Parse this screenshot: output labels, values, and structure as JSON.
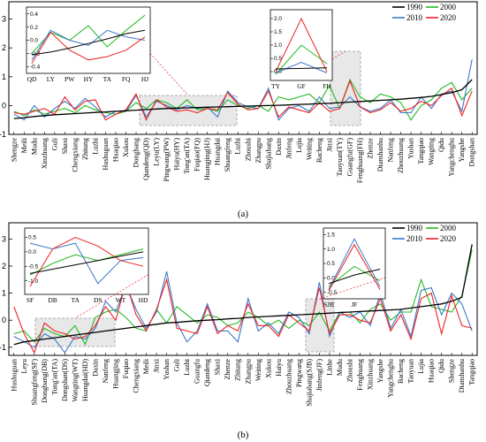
{
  "colors": {
    "1990": "#000000",
    "2000": "#22bb22",
    "2010": "#3a78c9",
    "2020": "#ee2222"
  },
  "chart_data": [
    {
      "type": "line",
      "caption": "(a)",
      "legend": [
        "1990",
        "2000",
        "2010",
        "2020"
      ],
      "legend_position": "top-right",
      "ylim": [
        -1,
        3.6
      ],
      "yticks": [
        -1,
        0,
        1,
        2,
        3
      ],
      "categories": [
        "Shengze",
        "Meili",
        "Mudu",
        "Xinzhuang",
        "Guli",
        "Shaxi",
        "Chengxiang",
        "Zhitang",
        "Luzhi",
        "Hushuguan",
        "Huaqiao",
        "Xukou",
        "Dongbang",
        "Qiandeng(QD)",
        "Leyu(LY)",
        "Pingwang(PW)",
        "Haiyu(HY)",
        "Tong'an(TA)",
        "Fuqiao(FQ)",
        "Huangjing(HJ)",
        "Huangdai",
        "Shuangfeng",
        "Luzhi",
        "Zhoushi",
        "Zhangpu",
        "Shajiabang",
        "Daxin",
        "Jinfeng",
        "Lujia",
        "Weiting",
        "Bacheng",
        "Jinxi",
        "Taoyuan(TY)",
        "Guangfu(GF)",
        "Fenghuang(FH)",
        "Zhenze",
        "Dianshanhu",
        "Nanfeng",
        "Zhouzhuang",
        "Yushan",
        "Tangqiao",
        "Wangting",
        "Qidu",
        "Yangchenghu",
        "Yangshe",
        "Dongshan"
      ],
      "series": [
        {
          "name": "1990",
          "values": [
            -0.45,
            -0.42,
            -0.38,
            -0.35,
            -0.32,
            -0.3,
            -0.28,
            -0.26,
            -0.24,
            -0.22,
            -0.2,
            -0.18,
            -0.16,
            -0.14,
            -0.12,
            -0.1,
            -0.09,
            -0.08,
            -0.07,
            -0.06,
            -0.05,
            -0.04,
            -0.03,
            -0.02,
            -0.01,
            0,
            0.01,
            0.02,
            0.04,
            0.05,
            0.07,
            0.08,
            0.1,
            0.12,
            0.14,
            0.16,
            0.18,
            0.2,
            0.22,
            0.25,
            0.28,
            0.32,
            0.38,
            0.45,
            0.55,
            0.9
          ]
        },
        {
          "name": "2000",
          "values": [
            -0.2,
            -0.35,
            -0.15,
            -0.3,
            -0.2,
            -0.1,
            -0.25,
            0,
            -0.15,
            -0.25,
            -0.3,
            -0.2,
            0.1,
            -0.1,
            0.2,
            0.1,
            -0.1,
            0.2,
            -0.15,
            -0.1,
            -0.2,
            0.2,
            0,
            -0.1,
            0,
            -0.2,
            0.3,
            0.2,
            0.3,
            0.4,
            0.1,
            0.7,
            -0.1,
            0.9,
            0.3,
            0.1,
            0.4,
            0.3,
            0.1,
            -0.5,
            0,
            0.2,
            0.6,
            0.8,
            0.2,
            0.6
          ]
        },
        {
          "name": "2010",
          "values": [
            -0.3,
            -0.5,
            0,
            -0.4,
            -0.1,
            0.15,
            -0.1,
            0.25,
            -0.05,
            -0.4,
            -0.2,
            -0.2,
            0.35,
            -0.4,
            0.15,
            0,
            -0.15,
            0,
            -0.1,
            -0.05,
            -0.4,
            0.5,
            0.1,
            -0.05,
            -0.1,
            0.6,
            -0.5,
            -0.1,
            0,
            -0.2,
            0.3,
            -0.1,
            -0.05,
            0.3,
            -0.05,
            -0.2,
            -0.1,
            0.2,
            -0.25,
            -0.25,
            0.3,
            -0.1,
            0.4,
            0.5,
            -0.2,
            1.6
          ]
        },
        {
          "name": "2020",
          "values": [
            -0.25,
            -0.3,
            -0.2,
            -0.1,
            -0.3,
            0.3,
            -0.15,
            0.15,
            0.2,
            -0.5,
            -0.3,
            -0.15,
            0.4,
            -0.5,
            0.2,
            -0.05,
            -0.2,
            -0.15,
            -0.25,
            -0.1,
            -0.15,
            0.45,
            0.05,
            -0.15,
            -0.1,
            0.5,
            -0.4,
            -0.05,
            -0.15,
            -0.25,
            0.1,
            -0.2,
            -0.1,
            0.85,
            -0.05,
            -0.25,
            -0.15,
            0.1,
            -0.2,
            -0.1,
            0.15,
            0,
            0.35,
            0.6,
            -0.35,
            0.5
          ]
        }
      ],
      "insets": [
        {
          "xticks": [
            "QD",
            "LY",
            "PW",
            "HY",
            "TA",
            "FQ",
            "HJ"
          ],
          "yticks": [
            "0.4",
            "0.2",
            "0.0",
            "-0.2",
            "-0.4"
          ],
          "ylim": [
            -0.45,
            0.45
          ],
          "series": [
            {
              "name": "1990",
              "values": [
                -0.22,
                -0.18,
                -0.12,
                -0.05,
                0.02,
                0.1,
                0.15
              ]
            },
            {
              "name": "2000",
              "values": [
                -0.2,
                0.12,
                0.0,
                0.22,
                -0.1,
                0.15,
                0.38
              ]
            },
            {
              "name": "2010",
              "values": [
                -0.3,
                0.15,
                0.0,
                -0.08,
                0.15,
                0.05,
                0.0
              ]
            },
            {
              "name": "2020",
              "values": [
                -0.35,
                0.12,
                -0.15,
                -0.3,
                -0.25,
                -0.15,
                0.05
              ]
            }
          ]
        },
        {
          "xticks": [
            "TY",
            "GF",
            "FH"
          ],
          "yticks": [
            "2.0",
            "1.5",
            "1.0",
            "0.5",
            "0.0"
          ],
          "ylim": [
            -0.2,
            2.2
          ],
          "series": [
            {
              "name": "1990",
              "values": [
                0.1,
                0.12,
                0.14
              ]
            },
            {
              "name": "2000",
              "values": [
                -0.1,
                1.0,
                0.3
              ]
            },
            {
              "name": "2010",
              "values": [
                -0.05,
                0.35,
                -0.05
              ]
            },
            {
              "name": "2020",
              "values": [
                0.0,
                2.0,
                0.0
              ]
            }
          ]
        }
      ]
    },
    {
      "type": "line",
      "caption": "(b)",
      "legend": [
        "1990",
        "2000",
        "2010",
        "2020"
      ],
      "legend_position": "top-right",
      "ylim": [
        -1.3,
        3.6
      ],
      "yticks": [
        -1,
        0,
        1,
        2,
        3
      ],
      "categories": [
        "Hushuguan",
        "Leyu",
        "Shuangfeng(SF)",
        "Dongbang(DB)",
        "Tong'an(TA)",
        "Dongshan(DS)",
        "Wangting(WT)",
        "Huangdai(HD)",
        "Daxin",
        "Nanfeng",
        "Huangjing",
        "Fuqiao",
        "Chengxiang",
        "Meili",
        "Jinxi",
        "Yushan",
        "Guli",
        "Luzhi",
        "Guangfu",
        "Qiandeng",
        "Shaxi",
        "Zhenze",
        "Zhitang",
        "Zhangpu",
        "Weiting",
        "Xukou",
        "Haiyu",
        "Zhouzhuang",
        "Pingwang",
        "Shajiabang(SJB)",
        "Jinfeng(JF)",
        "Linhe",
        "Mudu",
        "Zhoushi",
        "Fenghuang",
        "Xinzhuang",
        "Yangshe",
        "Yangchenghu",
        "Bacheng",
        "Taoyuan",
        "Lujia",
        "Huaqiao",
        "Qidu",
        "Shengze",
        "Dianshanhu",
        "Tangqiao"
      ],
      "series": [
        {
          "name": "1990",
          "values": [
            -0.9,
            -0.8,
            -0.75,
            -0.7,
            -0.65,
            -0.6,
            -0.55,
            -0.5,
            -0.45,
            -0.4,
            -0.35,
            -0.3,
            -0.25,
            -0.2,
            -0.15,
            -0.1,
            -0.08,
            -0.05,
            -0.02,
            0,
            0.02,
            0.05,
            0.07,
            0.1,
            0.12,
            0.14,
            0.16,
            0.18,
            0.2,
            0.22,
            0.24,
            0.26,
            0.28,
            0.3,
            0.32,
            0.34,
            0.36,
            0.38,
            0.4,
            0.45,
            0.5,
            0.55,
            0.6,
            0.7,
            0.85,
            2.8
          ]
        },
        {
          "name": "2000",
          "values": [
            -0.5,
            -0.4,
            -0.8,
            -0.3,
            -0.5,
            -0.6,
            -0.2,
            -0.9,
            0.1,
            0.3,
            0.4,
            0.1,
            -0.3,
            -0.4,
            0.4,
            -0.1,
            0.5,
            0.2,
            -0.1,
            0.2,
            0.1,
            -0.2,
            -0.1,
            0.3,
            0.1,
            -0.2,
            0,
            -0.3,
            0,
            -0.2,
            0.3,
            -0.4,
            0.3,
            0.3,
            -0.1,
            0.4,
            0.6,
            0,
            0.3,
            0.3,
            1.5,
            0.5,
            0.4,
            0.3,
            0.9,
            2.6
          ]
        },
        {
          "name": "2010",
          "values": [
            -0.6,
            -0.8,
            -1.0,
            -0.5,
            -0.7,
            -1.2,
            -0.6,
            -0.7,
            -0.3,
            0.7,
            0.3,
            1.3,
            0.4,
            -0.3,
            0.3,
            1.8,
            -0.1,
            -0.8,
            -0.4,
            0.6,
            -0.4,
            -0.4,
            -0.8,
            0.8,
            -0.4,
            -0.1,
            -0.5,
            0.3,
            0.1,
            -0.5,
            1.4,
            -0.6,
            0.3,
            0.1,
            0.3,
            -0.2,
            1.0,
            -0.3,
            0.4,
            -0.6,
            1.1,
            1.2,
            0.2,
            1.0,
            0.6,
            -0.4
          ]
        },
        {
          "name": "2020",
          "values": [
            0.5,
            -0.5,
            -1.2,
            -0.1,
            -0.4,
            -0.5,
            -0.7,
            -0.6,
            -0.2,
            0.5,
            0.0,
            1.4,
            0.2,
            -0.4,
            0.4,
            1.5,
            -0.3,
            -0.4,
            -0.5,
            0.5,
            -0.5,
            -0.2,
            -0.4,
            0.6,
            -0.2,
            -0.2,
            -0.6,
            0.2,
            -0.1,
            -0.4,
            1.2,
            -0.5,
            0.2,
            0.2,
            0.0,
            -0.1,
            0.8,
            -0.4,
            0.2,
            -0.7,
            0.8,
            1.0,
            -0.5,
            0.9,
            -0.2,
            -0.3
          ]
        }
      ],
      "insets": [
        {
          "xticks": [
            "SF",
            "DB",
            "TA",
            "DS",
            "WT",
            "HD"
          ],
          "yticks": [
            "0.5",
            "0.0",
            "-0.5",
            "-1.0"
          ],
          "ylim": [
            -1.35,
            0.7
          ],
          "series": [
            {
              "name": "1990",
              "values": [
                -0.75,
                -0.6,
                -0.45,
                -0.3,
                -0.15,
                0.0
              ]
            },
            {
              "name": "2000",
              "values": [
                -0.8,
                -0.4,
                -0.1,
                -0.3,
                -0.1,
                0.1
              ]
            },
            {
              "name": "2010",
              "values": [
                0.3,
                0.1,
                0.3,
                -1.1,
                -0.3,
                -0.2
              ]
            },
            {
              "name": "2020",
              "values": [
                -1.2,
                0.1,
                0.5,
                0.2,
                -0.3,
                -0.5
              ]
            }
          ]
        },
        {
          "xticks": [
            "SJB",
            "JF"
          ],
          "yticks": [
            "1.5",
            "1.0",
            "0.5",
            "0.0",
            "-0.5"
          ],
          "ylim": [
            -0.6,
            1.6
          ],
          "series": [
            {
              "name": "1990",
              "values": [
                -0.2,
                0.1,
                0.3
              ]
            },
            {
              "name": "2000",
              "values": [
                -0.3,
                0.4,
                -0.1
              ]
            },
            {
              "name": "2010",
              "values": [
                -0.4,
                1.35,
                -0.3
              ]
            },
            {
              "name": "2020",
              "values": [
                -0.45,
                1.15,
                -0.4
              ]
            }
          ]
        }
      ]
    }
  ]
}
